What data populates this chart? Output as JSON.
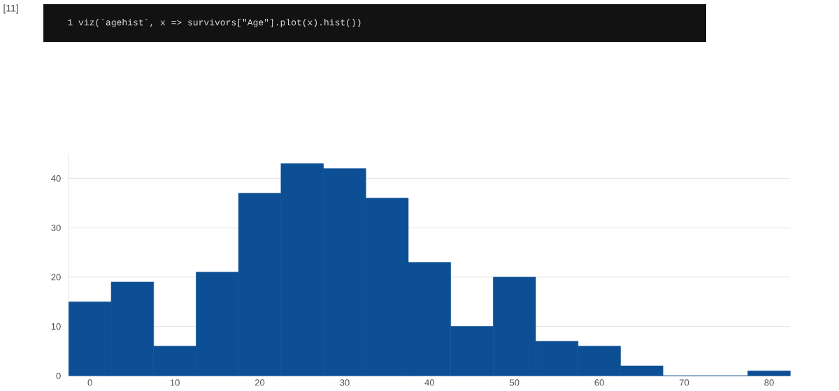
{
  "chart_data": {
    "type": "histogram",
    "bins": [
      -2.5,
      2.5,
      7.5,
      12.5,
      17.5,
      22.5,
      27.5,
      32.5,
      37.5,
      42.5,
      47.5,
      52.5,
      57.5,
      62.5,
      67.5,
      72.5,
      77.5,
      82.5
    ],
    "values": [
      15,
      19,
      6,
      21,
      37,
      43,
      42,
      36,
      23,
      10,
      20,
      7,
      6,
      2,
      0,
      0,
      1
    ],
    "color": "#0d4f94",
    "xlim": [
      -2.5,
      82.5
    ],
    "ylim": [
      0,
      45
    ],
    "xticks": [
      0,
      10,
      20,
      30,
      40,
      50,
      60,
      70,
      80
    ],
    "yticks": [
      0,
      10,
      20,
      30,
      40
    ],
    "grid": "y",
    "annotations": [
      "[11]",
      "1 viz(`agehist`, x => survivors[\"Age\"].plot(x).hist())"
    ]
  }
}
